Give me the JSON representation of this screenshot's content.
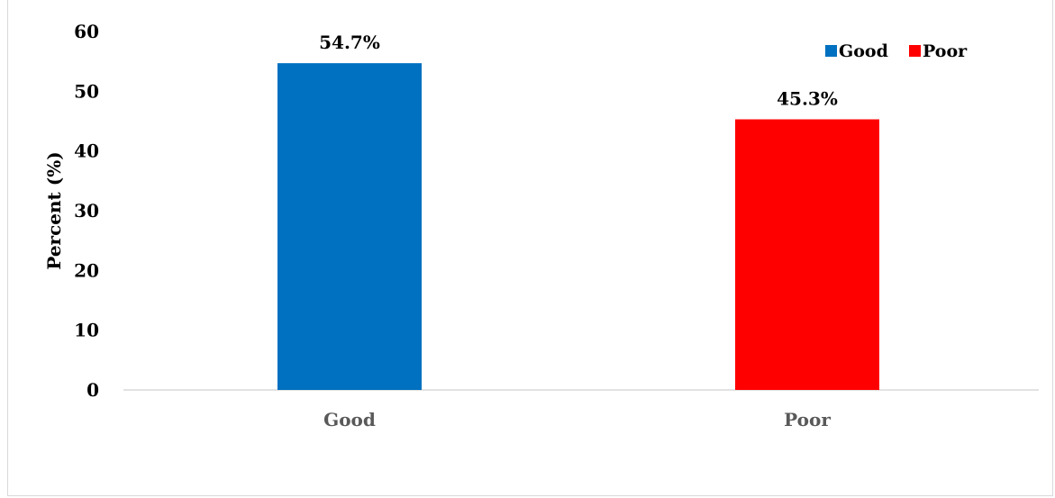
{
  "chart_data": {
    "type": "bar",
    "categories": [
      "Good",
      "Poor"
    ],
    "values": [
      54.7,
      45.3
    ],
    "data_labels": [
      "54.7%",
      "45.3%"
    ],
    "colors": [
      "#0070c0",
      "#ff0000"
    ],
    "xlabel": "",
    "ylabel": "Percent (%)",
    "ylim": [
      0,
      60
    ],
    "yticks": [
      0,
      10,
      20,
      30,
      40,
      50,
      60
    ],
    "ytick_labels": [
      "0",
      "10",
      "20",
      "30",
      "40",
      "50",
      "60"
    ],
    "grid": false,
    "legend": {
      "placement": "top-right",
      "entries": [
        {
          "label": "Good",
          "color": "#0070c0"
        },
        {
          "label": "Poor",
          "color": "#ff0000"
        }
      ]
    }
  }
}
